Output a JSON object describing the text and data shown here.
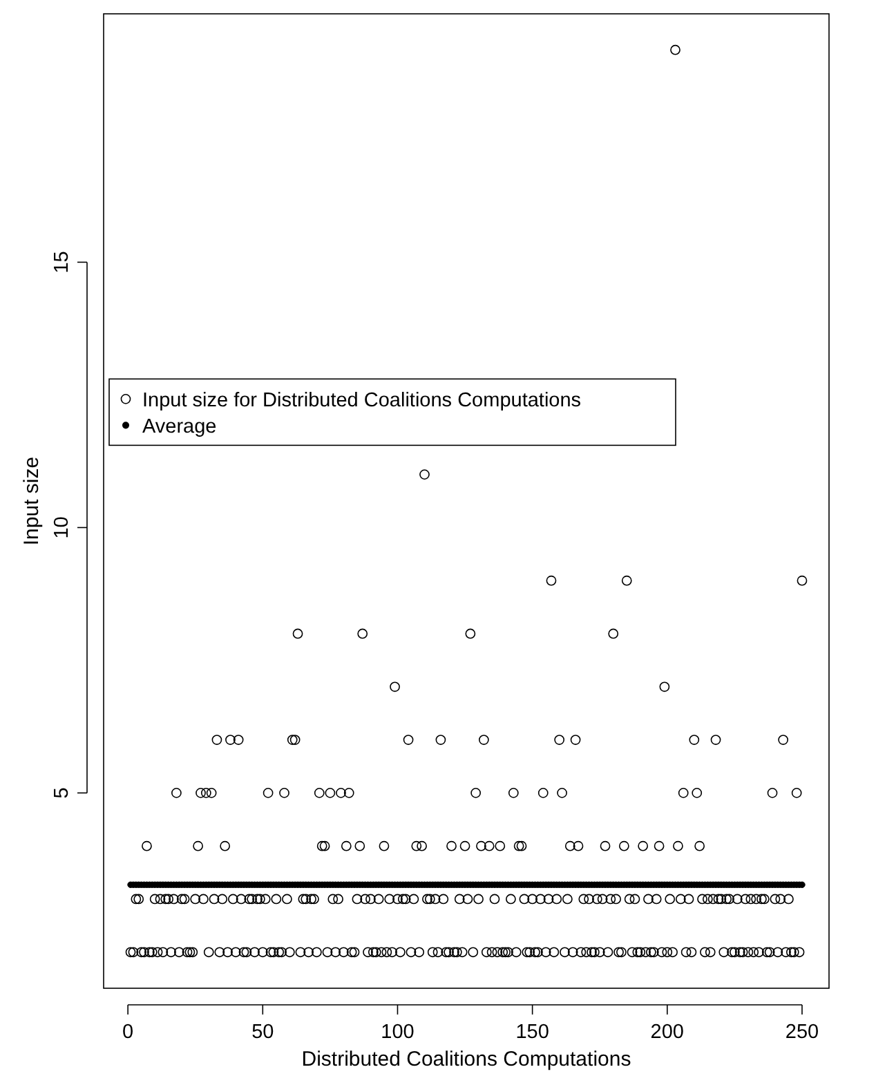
{
  "chart_data": {
    "type": "scatter",
    "xlabel": "Distributed Coalitions Computations",
    "ylabel": "Input size",
    "x": [
      1,
      2,
      3,
      4,
      5,
      6,
      7,
      8,
      9,
      10,
      11,
      12,
      13,
      14,
      15,
      16,
      17,
      18,
      19,
      20,
      21,
      22,
      23,
      24,
      25,
      26,
      27,
      28,
      29,
      30,
      31,
      32,
      33,
      34,
      35,
      36,
      37,
      38,
      39,
      40,
      41,
      42,
      43,
      44,
      45,
      46,
      47,
      48,
      49,
      50,
      51,
      52,
      53,
      54,
      55,
      56,
      57,
      58,
      59,
      60,
      61,
      62,
      63,
      64,
      65,
      66,
      67,
      68,
      69,
      70,
      71,
      72,
      73,
      74,
      75,
      76,
      77,
      78,
      79,
      80,
      81,
      82,
      83,
      84,
      85,
      86,
      87,
      88,
      89,
      90,
      91,
      92,
      93,
      94,
      95,
      96,
      97,
      98,
      99,
      100,
      101,
      102,
      103,
      104,
      105,
      106,
      107,
      108,
      109,
      110,
      111,
      112,
      113,
      114,
      115,
      116,
      117,
      118,
      119,
      120,
      121,
      122,
      123,
      124,
      125,
      126,
      127,
      128,
      129,
      130,
      131,
      132,
      133,
      134,
      135,
      136,
      137,
      138,
      139,
      140,
      141,
      142,
      143,
      144,
      145,
      146,
      147,
      148,
      149,
      150,
      151,
      152,
      153,
      154,
      155,
      156,
      157,
      158,
      159,
      160,
      161,
      162,
      163,
      164,
      165,
      166,
      167,
      168,
      169,
      170,
      171,
      172,
      173,
      174,
      175,
      176,
      177,
      178,
      179,
      180,
      181,
      182,
      183,
      184,
      185,
      186,
      187,
      188,
      189,
      190,
      191,
      192,
      193,
      194,
      195,
      196,
      197,
      198,
      199,
      200,
      201,
      202,
      203,
      204,
      205,
      206,
      207,
      208,
      209,
      210,
      211,
      212,
      213,
      214,
      215,
      216,
      217,
      218,
      219,
      220,
      221,
      222,
      223,
      224,
      225,
      226,
      227,
      228,
      229,
      230,
      231,
      232,
      233,
      234,
      235,
      236,
      237,
      238,
      239,
      240,
      241,
      242,
      243,
      244,
      245,
      246,
      247,
      248,
      249,
      250
    ],
    "series": [
      {
        "name": "Input size for Distributed Coalitions Computations",
        "color": "#000000",
        "values": [
          2,
          2,
          3,
          3,
          2,
          2,
          4,
          2,
          2,
          3,
          2,
          3,
          2,
          3,
          3,
          2,
          3,
          5,
          2,
          3,
          3,
          2,
          2,
          2,
          3,
          4,
          5,
          3,
          5,
          2,
          5,
          3,
          6,
          2,
          3,
          4,
          2,
          6,
          3,
          2,
          6,
          3,
          2,
          2,
          3,
          3,
          2,
          3,
          3,
          2,
          3,
          5,
          2,
          2,
          3,
          2,
          2,
          5,
          3,
          2,
          6,
          6,
          8,
          2,
          3,
          3,
          2,
          3,
          3,
          2,
          5,
          4,
          4,
          2,
          5,
          3,
          2,
          3,
          5,
          2,
          4,
          5,
          2,
          2,
          3,
          4,
          8,
          3,
          2,
          3,
          2,
          2,
          3,
          2,
          4,
          2,
          3,
          2,
          7,
          3,
          2,
          3,
          3,
          6,
          2,
          3,
          4,
          2,
          4,
          11,
          3,
          3,
          2,
          3,
          2,
          6,
          3,
          2,
          2,
          4,
          2,
          2,
          3,
          2,
          4,
          3,
          8,
          2,
          5,
          3,
          4,
          6,
          2,
          4,
          2,
          3,
          2,
          4,
          2,
          2,
          2,
          3,
          5,
          2,
          4,
          4,
          3,
          2,
          2,
          3,
          2,
          2,
          3,
          5,
          2,
          3,
          9,
          2,
          3,
          6,
          5,
          2,
          3,
          4,
          2,
          6,
          4,
          2,
          3,
          2,
          3,
          2,
          2,
          3,
          2,
          3,
          4,
          2,
          3,
          8,
          3,
          2,
          2,
          4,
          9,
          3,
          2,
          3,
          2,
          2,
          4,
          2,
          3,
          2,
          2,
          3,
          4,
          2,
          7,
          2,
          3,
          2,
          19,
          4,
          3,
          5,
          2,
          3,
          2,
          6,
          5,
          4,
          3,
          2,
          3,
          2,
          3,
          6,
          3,
          3,
          2,
          3,
          3,
          2,
          2,
          3,
          2,
          2,
          3,
          2,
          3,
          2,
          3,
          2,
          3,
          3,
          2,
          2,
          5,
          3,
          2,
          3,
          6,
          2,
          3,
          2,
          2,
          5,
          2,
          9
        ]
      },
      {
        "name": "Average",
        "color": "#000000",
        "values": [
          3.27,
          3.27,
          3.27,
          3.27,
          3.27,
          3.27,
          3.27,
          3.27,
          3.27,
          3.27,
          3.27,
          3.27,
          3.27,
          3.27,
          3.27,
          3.27,
          3.27,
          3.27,
          3.27,
          3.27,
          3.27,
          3.27,
          3.27,
          3.27,
          3.27,
          3.27,
          3.27,
          3.27,
          3.27,
          3.27,
          3.27,
          3.27,
          3.27,
          3.27,
          3.27,
          3.27,
          3.27,
          3.27,
          3.27,
          3.27,
          3.27,
          3.27,
          3.27,
          3.27,
          3.27,
          3.27,
          3.27,
          3.27,
          3.27,
          3.27,
          3.27,
          3.27,
          3.27,
          3.27,
          3.27,
          3.27,
          3.27,
          3.27,
          3.27,
          3.27,
          3.27,
          3.27,
          3.27,
          3.27,
          3.27,
          3.27,
          3.27,
          3.27,
          3.27,
          3.27,
          3.27,
          3.27,
          3.27,
          3.27,
          3.27,
          3.27,
          3.27,
          3.27,
          3.27,
          3.27,
          3.27,
          3.27,
          3.27,
          3.27,
          3.27,
          3.27,
          3.27,
          3.27,
          3.27,
          3.27,
          3.27,
          3.27,
          3.27,
          3.27,
          3.27,
          3.27,
          3.27,
          3.27,
          3.27,
          3.27,
          3.27,
          3.27,
          3.27,
          3.27,
          3.27,
          3.27,
          3.27,
          3.27,
          3.27,
          3.27,
          3.27,
          3.27,
          3.27,
          3.27,
          3.27,
          3.27,
          3.27,
          3.27,
          3.27,
          3.27,
          3.27,
          3.27,
          3.27,
          3.27,
          3.27,
          3.27,
          3.27,
          3.27,
          3.27,
          3.27,
          3.27,
          3.27,
          3.27,
          3.27,
          3.27,
          3.27,
          3.27,
          3.27,
          3.27,
          3.27,
          3.27,
          3.27,
          3.27,
          3.27,
          3.27,
          3.27,
          3.27,
          3.27,
          3.27,
          3.27,
          3.27,
          3.27,
          3.27,
          3.27,
          3.27,
          3.27,
          3.27,
          3.27,
          3.27,
          3.27,
          3.27,
          3.27,
          3.27,
          3.27,
          3.27,
          3.27,
          3.27,
          3.27,
          3.27,
          3.27,
          3.27,
          3.27,
          3.27,
          3.27,
          3.27,
          3.27,
          3.27,
          3.27,
          3.27,
          3.27,
          3.27,
          3.27,
          3.27,
          3.27,
          3.27,
          3.27,
          3.27,
          3.27,
          3.27,
          3.27,
          3.27,
          3.27,
          3.27,
          3.27,
          3.27,
          3.27,
          3.27,
          3.27,
          3.27,
          3.27,
          3.27,
          3.27,
          3.27,
          3.27,
          3.27,
          3.27,
          3.27,
          3.27,
          3.27,
          3.27,
          3.27,
          3.27,
          3.27,
          3.27,
          3.27,
          3.27,
          3.27,
          3.27,
          3.27,
          3.27,
          3.27,
          3.27,
          3.27,
          3.27,
          3.27,
          3.27,
          3.27,
          3.27,
          3.27,
          3.27,
          3.27,
          3.27,
          3.27,
          3.27,
          3.27,
          3.27,
          3.27,
          3.27,
          3.27,
          3.27,
          3.27,
          3.27,
          3.27,
          3.27,
          3.27,
          3.27,
          3.27,
          3.27,
          3.27,
          3.27
        ]
      }
    ],
    "xlim": [
      -9,
      260
    ],
    "xticks": [
      0,
      50,
      100,
      150,
      200,
      250
    ],
    "ylim": [
      1.32,
      19.68
    ],
    "yticks": [
      5,
      10,
      15
    ],
    "marker": "circle",
    "legend": "left"
  }
}
